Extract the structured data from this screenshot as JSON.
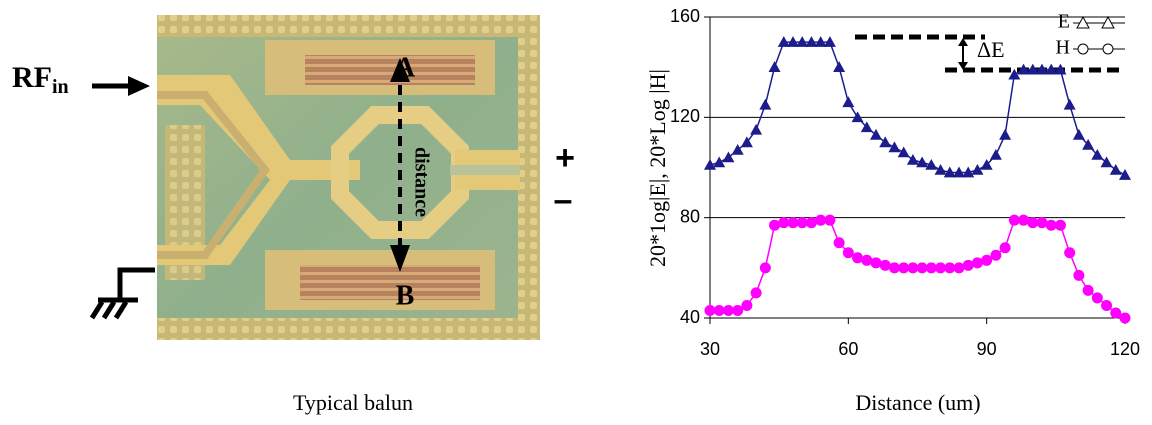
{
  "image_panel": {
    "input_label": "RF",
    "input_subscript": "in",
    "point_a": "A",
    "point_b": "B",
    "distance_label": "distance",
    "plus": "+",
    "minus": "–",
    "caption": "Typical balun"
  },
  "chart_data": {
    "type": "line",
    "x_label": "Distance (um)",
    "y_label": "20*1og|E|, 20*Log |H|",
    "annotation": "ΔE",
    "x": [
      30,
      32,
      34,
      36,
      38,
      40,
      42,
      44,
      46,
      48,
      50,
      52,
      54,
      56,
      58,
      60,
      62,
      64,
      66,
      68,
      70,
      72,
      74,
      76,
      78,
      80,
      82,
      84,
      86,
      88,
      90,
      92,
      94,
      96,
      98,
      100,
      102,
      104,
      106,
      108,
      110,
      112,
      114,
      116,
      118,
      120
    ],
    "series": [
      {
        "name": "E",
        "color": "#1c1c8c",
        "marker": "triangle",
        "values": [
          101,
          102,
          104,
          107,
          110,
          115,
          125,
          140,
          150,
          150,
          150,
          150,
          150,
          150,
          140,
          126,
          120,
          116,
          113,
          110,
          108,
          106,
          103,
          102,
          101,
          99,
          98,
          98,
          98,
          99,
          101,
          105,
          113,
          137,
          139,
          139,
          139,
          139,
          139,
          125,
          113,
          109,
          105,
          102,
          99,
          97
        ]
      },
      {
        "name": "H",
        "color": "#ff00ff",
        "marker": "circle",
        "values": [
          43,
          43,
          43,
          43,
          45,
          50,
          60,
          77,
          78,
          78,
          78,
          78,
          79,
          79,
          70,
          66,
          64,
          63,
          62,
          61,
          60,
          60,
          60,
          60,
          60,
          60,
          60,
          60,
          61,
          62,
          63,
          65,
          68,
          79,
          79,
          78,
          78,
          77,
          77,
          66,
          57,
          51,
          48,
          45,
          42,
          40
        ]
      }
    ],
    "xlim": [
      30,
      120
    ],
    "xticks": [
      30,
      60,
      90,
      120
    ],
    "ylim": [
      40,
      160
    ],
    "yticks": [
      40,
      80,
      120,
      160
    ],
    "grid": true,
    "legend": "top-right"
  }
}
